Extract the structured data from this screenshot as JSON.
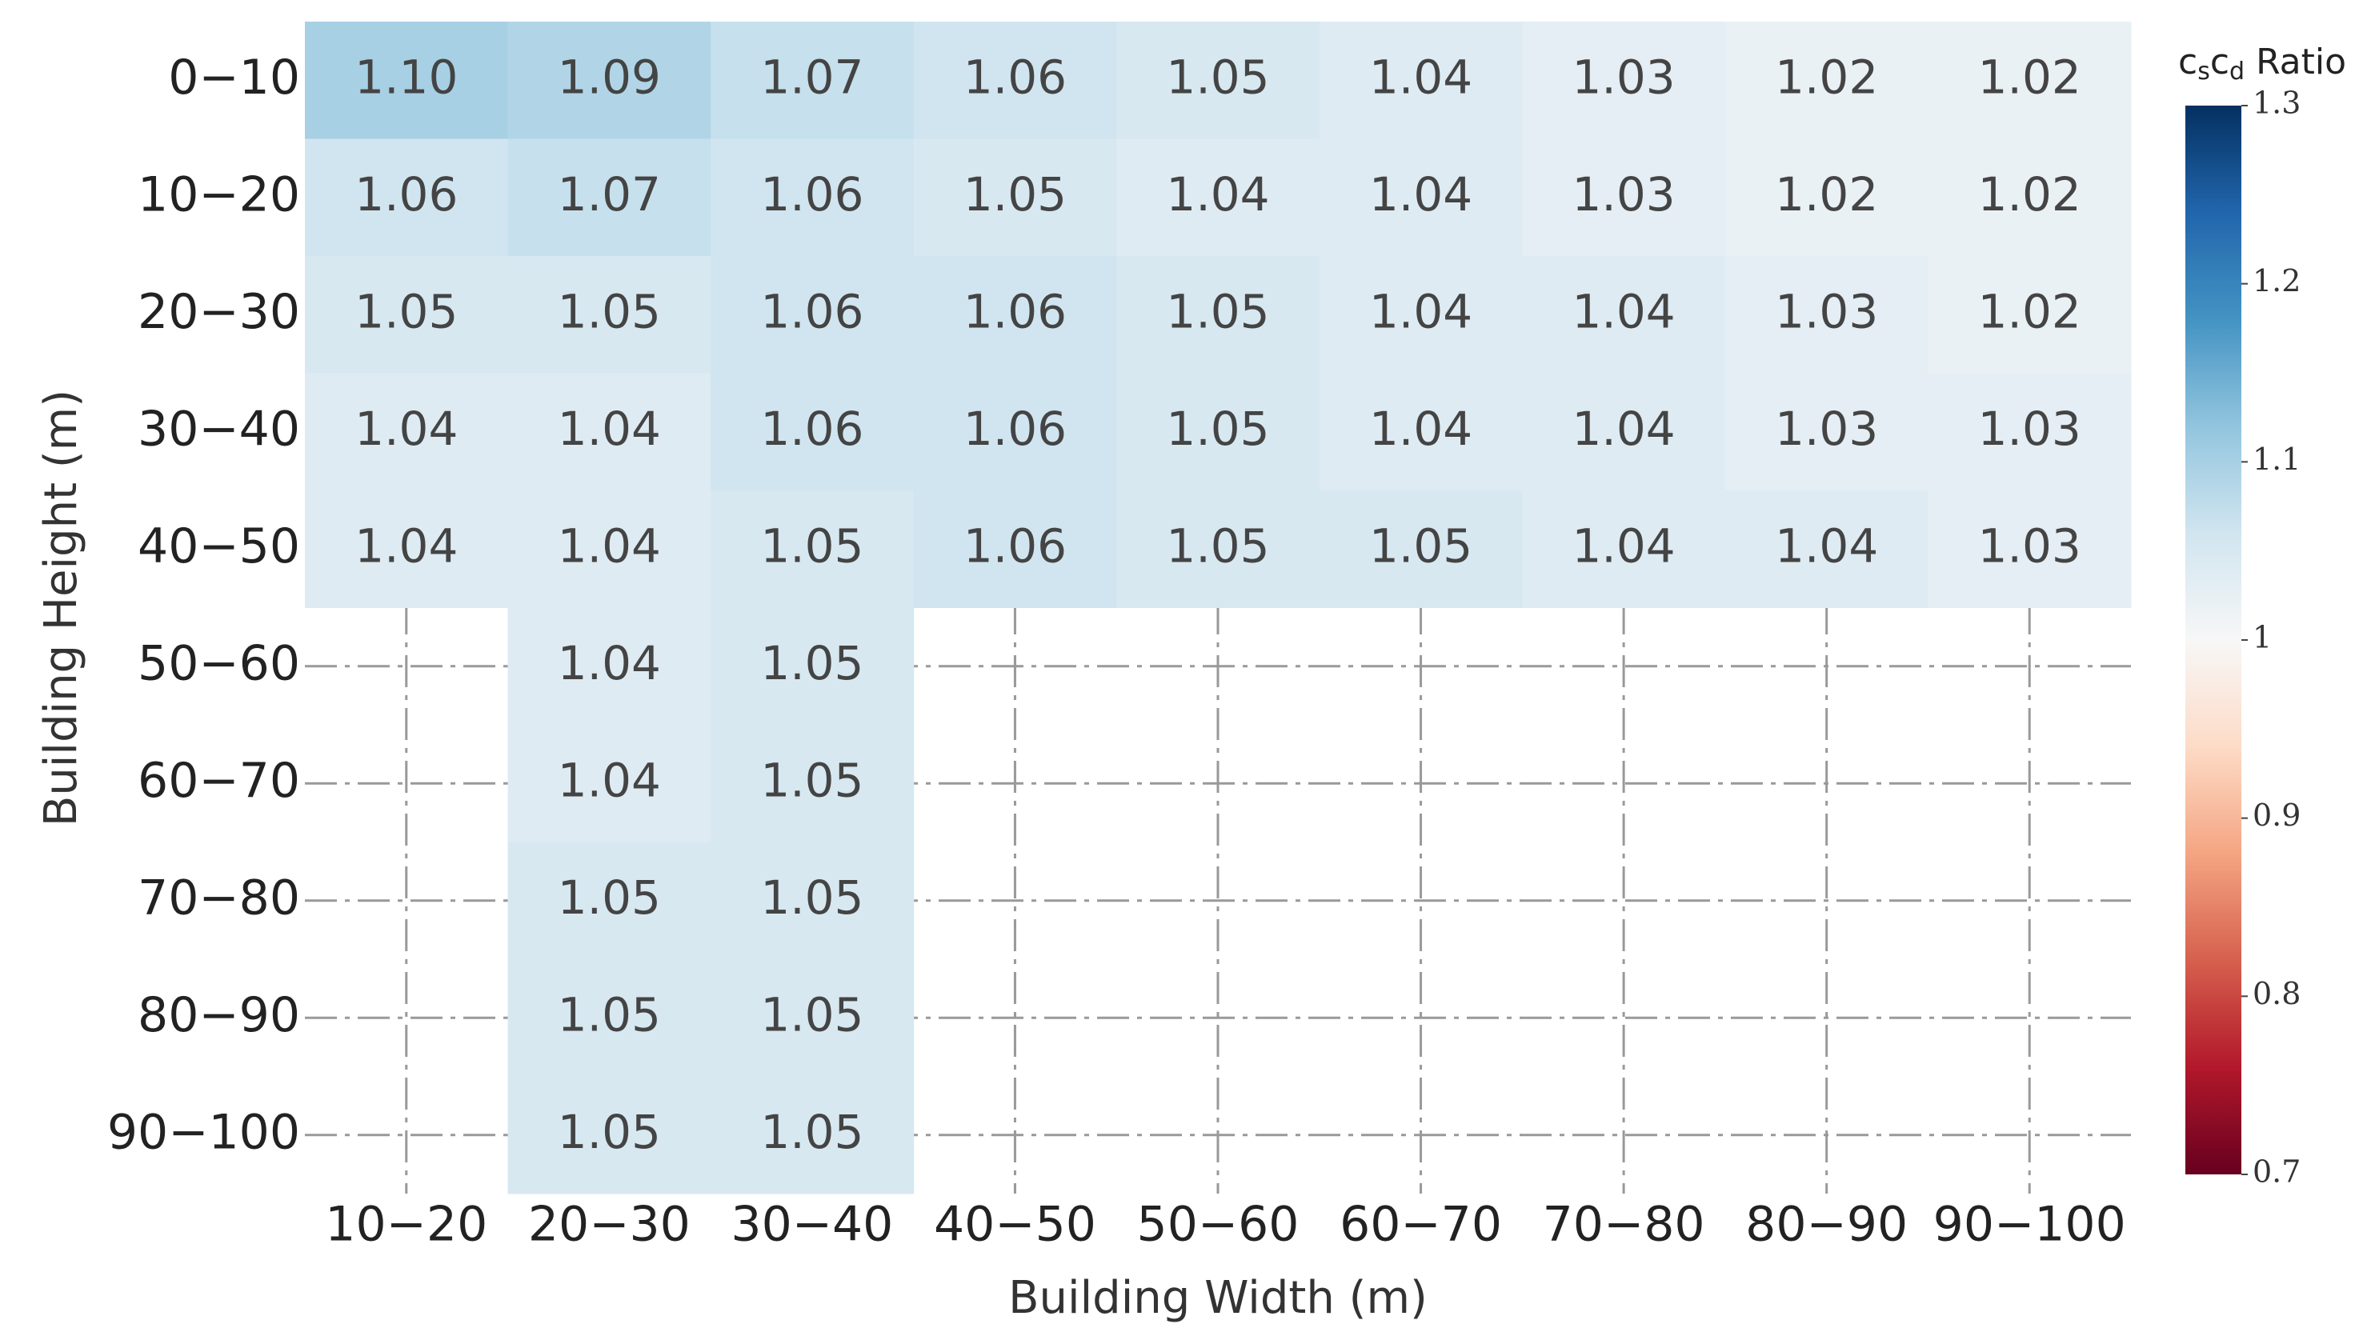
{
  "chart_data": {
    "type": "heatmap",
    "x_label": "Building Width (m)",
    "y_label": "Building Height (m)",
    "colorbar_title_parts": [
      "c",
      "s",
      "c",
      "d",
      " Ratio"
    ],
    "x_categories": [
      "10−20",
      "20−30",
      "30−40",
      "40−50",
      "50−60",
      "60−70",
      "70−80",
      "80−90",
      "90−100"
    ],
    "y_categories": [
      "0−10",
      "10−20",
      "20−30",
      "30−40",
      "40−50",
      "50−60",
      "60−70",
      "70−80",
      "80−90",
      "90−100"
    ],
    "values": [
      [
        1.1,
        1.09,
        1.07,
        1.06,
        1.05,
        1.04,
        1.03,
        1.02,
        1.02
      ],
      [
        1.06,
        1.07,
        1.06,
        1.05,
        1.04,
        1.04,
        1.03,
        1.02,
        1.02
      ],
      [
        1.05,
        1.05,
        1.06,
        1.06,
        1.05,
        1.04,
        1.04,
        1.03,
        1.02
      ],
      [
        1.04,
        1.04,
        1.06,
        1.06,
        1.05,
        1.04,
        1.04,
        1.03,
        1.03
      ],
      [
        1.04,
        1.04,
        1.05,
        1.06,
        1.05,
        1.05,
        1.04,
        1.04,
        1.03
      ],
      [
        null,
        1.04,
        1.05,
        null,
        null,
        null,
        null,
        null,
        null
      ],
      [
        null,
        1.04,
        1.05,
        null,
        null,
        null,
        null,
        null,
        null
      ],
      [
        null,
        1.05,
        1.05,
        null,
        null,
        null,
        null,
        null,
        null
      ],
      [
        null,
        1.05,
        1.05,
        null,
        null,
        null,
        null,
        null,
        null
      ],
      [
        null,
        1.05,
        1.05,
        null,
        null,
        null,
        null,
        null,
        null
      ]
    ],
    "value_labels": [
      [
        "1.10",
        "1.09",
        "1.07",
        "1.06",
        "1.05",
        "1.04",
        "1.03",
        "1.02",
        "1.02"
      ],
      [
        "1.06",
        "1.07",
        "1.06",
        "1.05",
        "1.04",
        "1.04",
        "1.03",
        "1.02",
        "1.02"
      ],
      [
        "1.05",
        "1.05",
        "1.06",
        "1.06",
        "1.05",
        "1.04",
        "1.04",
        "1.03",
        "1.02"
      ],
      [
        "1.04",
        "1.04",
        "1.06",
        "1.06",
        "1.05",
        "1.04",
        "1.04",
        "1.03",
        "1.03"
      ],
      [
        "1.04",
        "1.04",
        "1.05",
        "1.06",
        "1.05",
        "1.05",
        "1.04",
        "1.04",
        "1.03"
      ],
      [
        null,
        "1.04",
        "1.05",
        null,
        null,
        null,
        null,
        null,
        null
      ],
      [
        null,
        "1.04",
        "1.05",
        null,
        null,
        null,
        null,
        null,
        null
      ],
      [
        null,
        "1.05",
        "1.05",
        null,
        null,
        null,
        null,
        null,
        null
      ],
      [
        null,
        "1.05",
        "1.05",
        null,
        null,
        null,
        null,
        null,
        null
      ],
      [
        null,
        "1.05",
        "1.05",
        null,
        null,
        null,
        null,
        null,
        null
      ]
    ],
    "zlim": [
      0.7,
      1.3
    ],
    "zticks": [
      0.7,
      0.8,
      0.9,
      1,
      1.1,
      1.2,
      1.3
    ],
    "colorscale": [
      "#67001f",
      "#b2182b",
      "#d6604d",
      "#f4a582",
      "#fddbc7",
      "#f7f7f7",
      "#d1e5f0",
      "#92c5de",
      "#4393c3",
      "#2166ac",
      "#053061"
    ],
    "grid": true
  }
}
